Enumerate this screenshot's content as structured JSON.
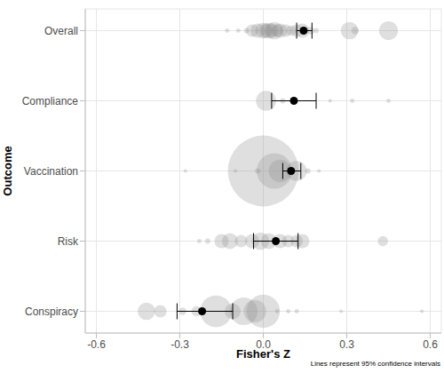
{
  "chart_data": {
    "type": "forest",
    "x_label": "Fisher's Z",
    "y_label": "Outcome",
    "annotation": "Lines represent 95% confidence intervals",
    "categories": [
      "Overall",
      "Compliance",
      "Vaccination",
      "Risk",
      "Conspiracy"
    ],
    "estimates": [
      0.145,
      0.11,
      0.1,
      0.045,
      -0.22
    ],
    "ci_lower": [
      0.12,
      0.03,
      0.07,
      -0.035,
      -0.31
    ],
    "ci_upper": [
      0.175,
      0.19,
      0.135,
      0.125,
      -0.11
    ],
    "studies": [
      {
        "category": "Overall",
        "values": [
          -0.13,
          -0.09,
          -0.06,
          -0.04,
          -0.02,
          0.0,
          0.01,
          0.02,
          0.03,
          0.04,
          0.05,
          0.06,
          0.08,
          0.1,
          0.12,
          0.14,
          0.17,
          0.19,
          0.31,
          0.33,
          0.45
        ],
        "sizes": [
          0.3,
          0.3,
          0.5,
          3,
          4,
          5,
          4,
          5,
          4,
          6,
          3,
          4,
          3,
          2,
          3,
          4,
          1,
          0.5,
          6,
          1,
          7
        ]
      },
      {
        "category": "Compliance",
        "values": [
          0.01,
          0.07,
          0.24,
          0.32,
          0.45
        ],
        "sizes": [
          8,
          0.5,
          0.2,
          0.3,
          0.3
        ]
      },
      {
        "category": "Vaccination",
        "values": [
          -0.28,
          -0.1,
          -0.02,
          0.0,
          0.04,
          0.06,
          0.12,
          0.16,
          0.2
        ],
        "sizes": [
          0.2,
          0.2,
          0.5,
          100,
          25,
          10,
          8,
          0.5,
          0.2
        ]
      },
      {
        "category": "Risk",
        "values": [
          -0.23,
          -0.2,
          -0.15,
          -0.12,
          -0.08,
          -0.04,
          -0.01,
          0.02,
          0.06,
          0.09,
          0.12,
          0.14,
          0.43
        ],
        "sizes": [
          0.3,
          0.5,
          4,
          5,
          3,
          4,
          6,
          5,
          4,
          3,
          3,
          4,
          2
        ]
      },
      {
        "category": "Conspiracy",
        "values": [
          -0.42,
          -0.37,
          -0.29,
          -0.24,
          -0.17,
          -0.11,
          -0.07,
          -0.03,
          0.0,
          0.05,
          0.09,
          0.12,
          0.28,
          0.57
        ],
        "sizes": [
          6,
          3,
          1,
          2,
          20,
          5,
          15,
          10,
          22,
          0.3,
          0.3,
          0.3,
          0.2,
          0.2
        ]
      }
    ],
    "xlim": [
      -0.64,
      0.64
    ],
    "xticks": [
      -0.6,
      -0.3,
      {
        "value": 0,
        "label": "0.0"
      },
      0.3,
      0.6
    ],
    "grid": true,
    "color": "#000000"
  }
}
